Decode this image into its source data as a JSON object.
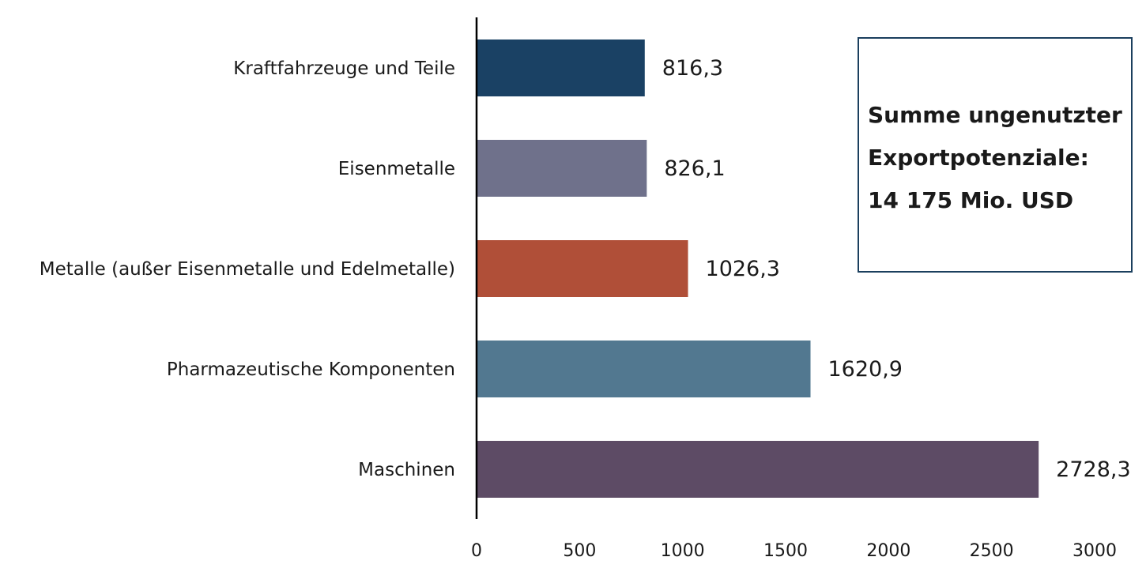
{
  "chart_data": {
    "type": "bar",
    "orientation": "horizontal",
    "categories": [
      "Kraftfahrzeuge und Teile",
      "Eisenmetalle",
      "Metalle (außer Eisenmetalle und Edelmetalle)",
      "Pharmazeutische Komponenten",
      "Maschinen"
    ],
    "values": [
      816.3,
      826.1,
      1026.3,
      1620.9,
      2728.3
    ],
    "value_labels": [
      "816,3",
      "826,1",
      "1026,3",
      "1620,9",
      "2728,3"
    ],
    "colors": [
      "#1a4164",
      "#6f718b",
      "#b04f38",
      "#527890",
      "#5d4b65"
    ],
    "xlim": [
      0,
      3000
    ],
    "xticks": [
      0,
      500,
      1000,
      1500,
      2000,
      2500,
      3000
    ],
    "xtick_labels": [
      "0",
      "500",
      "1000",
      "1500",
      "2000",
      "2500",
      "3000"
    ],
    "title": "",
    "xlabel": "",
    "ylabel": "",
    "grid": false,
    "legend": "none"
  },
  "info_box": {
    "line1": "Summe ungenutzter",
    "line2": "Exportpotenziale:",
    "line3": "14 175 Mio. USD",
    "border_color": "#1b3f5e"
  }
}
